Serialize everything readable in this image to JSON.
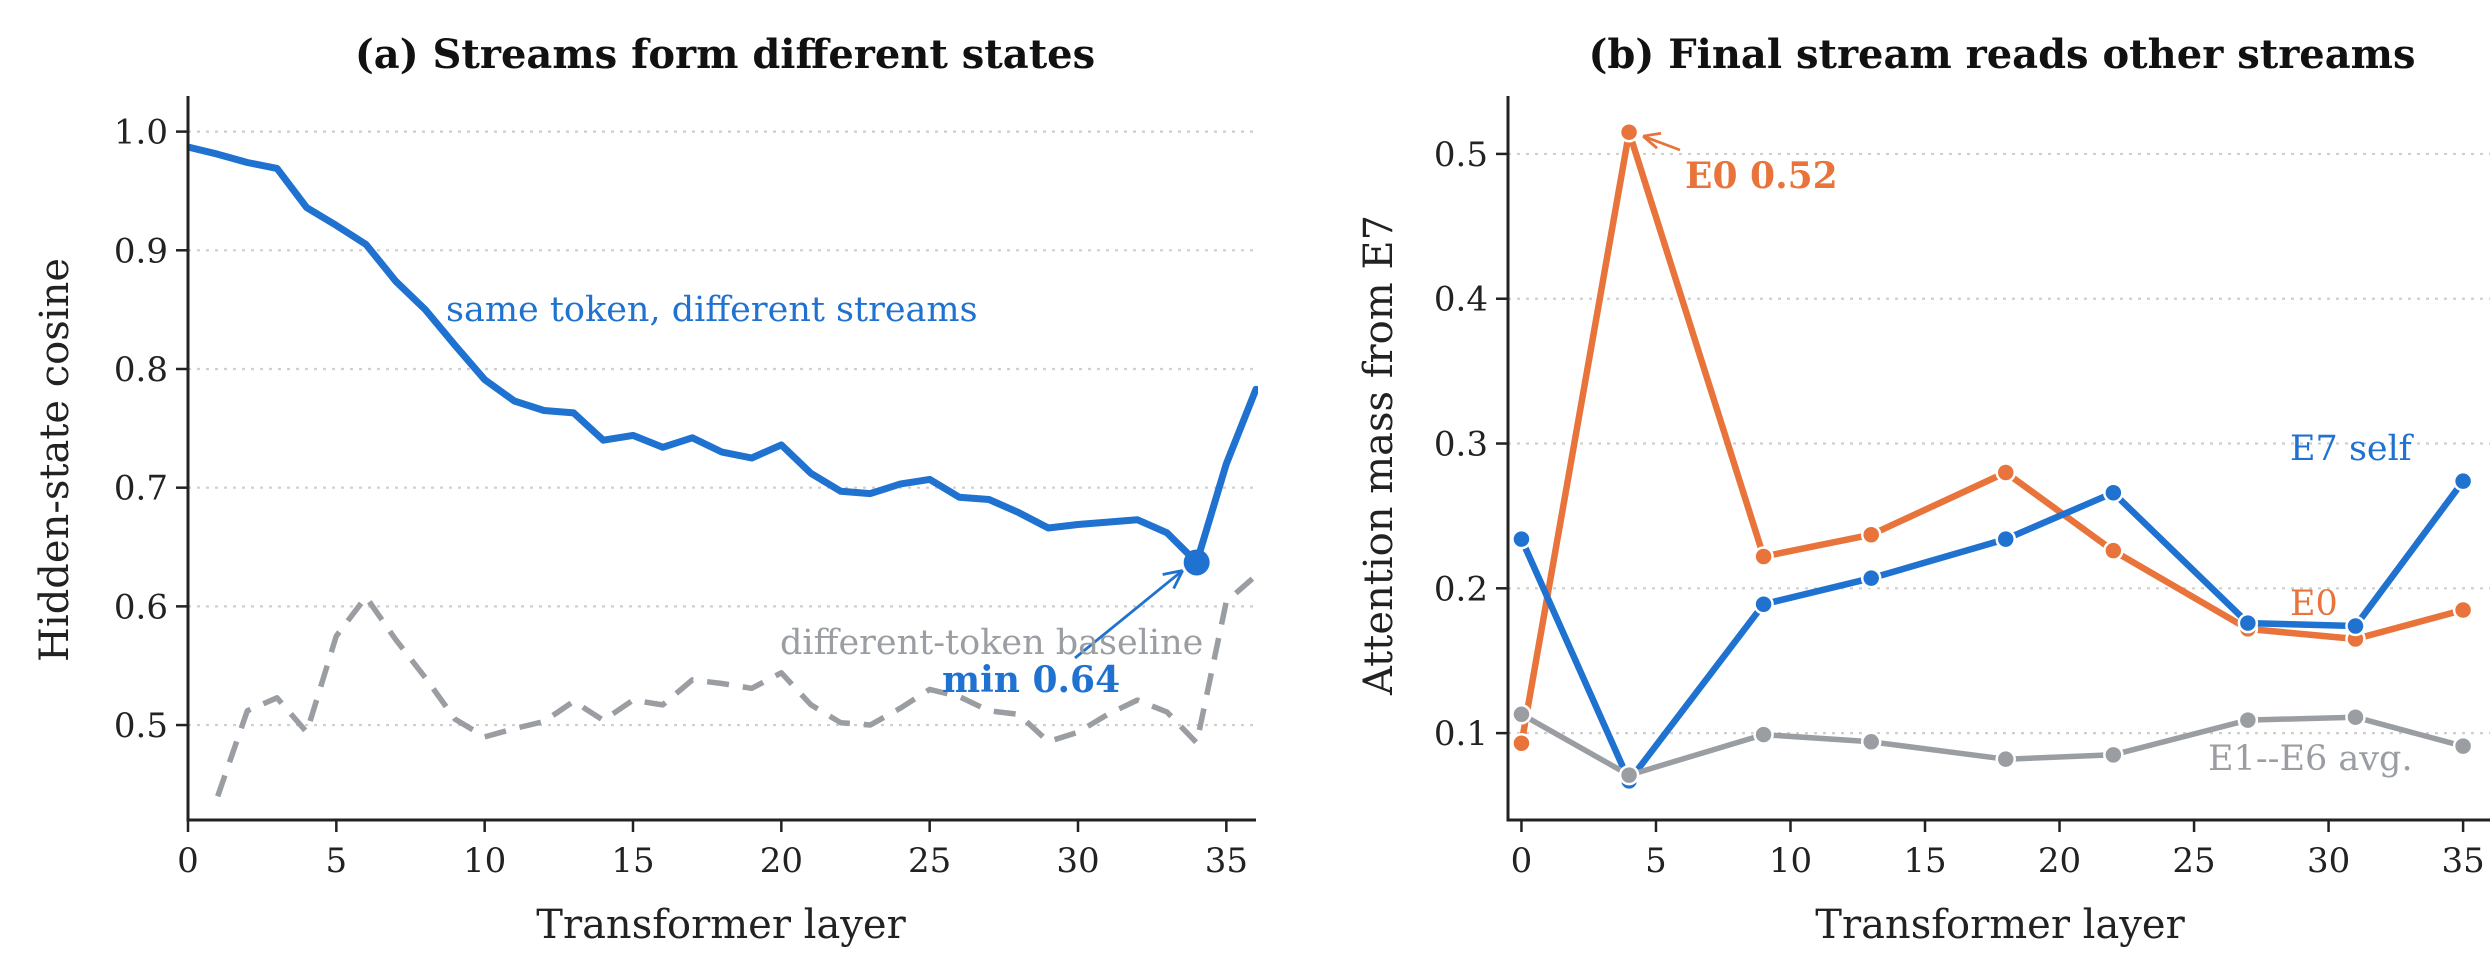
{
  "chart_data": [
    {
      "type": "line",
      "title": "(a) Streams form different states",
      "xlabel": "Transformer layer",
      "ylabel": "Hidden-state cosine",
      "xlim": [
        0,
        36
      ],
      "ylim": [
        0.42,
        1.03
      ],
      "xticks": [
        "0",
        "5",
        "10",
        "15",
        "20",
        "25",
        "30",
        "35"
      ],
      "yticks": [
        "0.5",
        "0.6",
        "0.7",
        "0.8",
        "0.9",
        "1.0"
      ],
      "grid": "horizontal-dotted",
      "series": [
        {
          "name": "same token, different streams",
          "color": "#1f72cf",
          "style": "solid",
          "x": [
            0,
            1,
            2,
            3,
            4,
            5,
            6,
            7,
            8,
            9,
            10,
            11,
            12,
            13,
            14,
            15,
            16,
            17,
            18,
            19,
            20,
            21,
            22,
            23,
            24,
            25,
            26,
            27,
            28,
            29,
            30,
            31,
            32,
            33,
            34,
            35,
            36
          ],
          "y": [
            0.987,
            0.981,
            0.974,
            0.969,
            0.936,
            0.921,
            0.905,
            0.874,
            0.85,
            0.82,
            0.791,
            0.773,
            0.765,
            0.763,
            0.74,
            0.744,
            0.734,
            0.742,
            0.73,
            0.725,
            0.736,
            0.712,
            0.697,
            0.695,
            0.703,
            0.707,
            0.692,
            0.69,
            0.679,
            0.666,
            0.669,
            0.671,
            0.673,
            0.662,
            0.637,
            0.72,
            0.783
          ]
        },
        {
          "name": "different-token baseline",
          "color": "#9a9da2",
          "style": "dashed",
          "x": [
            1,
            2,
            3,
            4,
            5,
            6,
            7,
            8,
            9,
            10,
            11,
            12,
            13,
            14,
            15,
            16,
            17,
            18,
            19,
            20,
            21,
            22,
            23,
            24,
            25,
            26,
            27,
            28,
            29,
            30,
            31,
            32,
            33,
            34,
            35,
            36
          ],
          "y": [
            0.44,
            0.512,
            0.523,
            0.494,
            0.575,
            0.608,
            0.572,
            0.54,
            0.505,
            0.49,
            0.497,
            0.503,
            0.52,
            0.504,
            0.521,
            0.517,
            0.538,
            0.535,
            0.531,
            0.544,
            0.517,
            0.502,
            0.5,
            0.514,
            0.53,
            0.524,
            0.512,
            0.509,
            0.486,
            0.494,
            0.509,
            0.521,
            0.511,
            0.485,
            0.604,
            0.626
          ]
        }
      ],
      "annotations": [
        {
          "text": "min 0.64",
          "x": 34,
          "y": 0.637,
          "color": "#1f72cf"
        }
      ]
    },
    {
      "type": "line",
      "title": "(b) Final stream reads other streams",
      "xlabel": "Transformer layer",
      "ylabel": "Attention mass from E7",
      "xlim": [
        -0.5,
        36
      ],
      "ylim": [
        0.04,
        0.54
      ],
      "xticks": [
        "0",
        "5",
        "10",
        "15",
        "20",
        "25",
        "30",
        "35"
      ],
      "yticks": [
        "0.1",
        "0.2",
        "0.3",
        "0.4",
        "0.5"
      ],
      "grid": "horizontal-dotted",
      "series": [
        {
          "name": "E0",
          "color": "#e8743b",
          "x": [
            0,
            4,
            9,
            13,
            18,
            22,
            27,
            31,
            35
          ],
          "y": [
            0.093,
            0.515,
            0.222,
            0.237,
            0.28,
            0.226,
            0.172,
            0.165,
            0.185
          ]
        },
        {
          "name": "E7 self",
          "color": "#1f72cf",
          "x": [
            0,
            4,
            9,
            13,
            18,
            22,
            27,
            31,
            35
          ],
          "y": [
            0.234,
            0.067,
            0.189,
            0.207,
            0.234,
            0.266,
            0.176,
            0.174,
            0.274
          ]
        },
        {
          "name": "E1--E6 avg.",
          "color": "#9a9da2",
          "x": [
            0,
            4,
            9,
            13,
            18,
            22,
            27,
            31,
            35
          ],
          "y": [
            0.113,
            0.071,
            0.099,
            0.094,
            0.082,
            0.085,
            0.109,
            0.111,
            0.091
          ]
        }
      ],
      "annotations": [
        {
          "text": "E0 0.52",
          "x": 4,
          "y": 0.515,
          "color": "#e8743b"
        }
      ]
    }
  ]
}
